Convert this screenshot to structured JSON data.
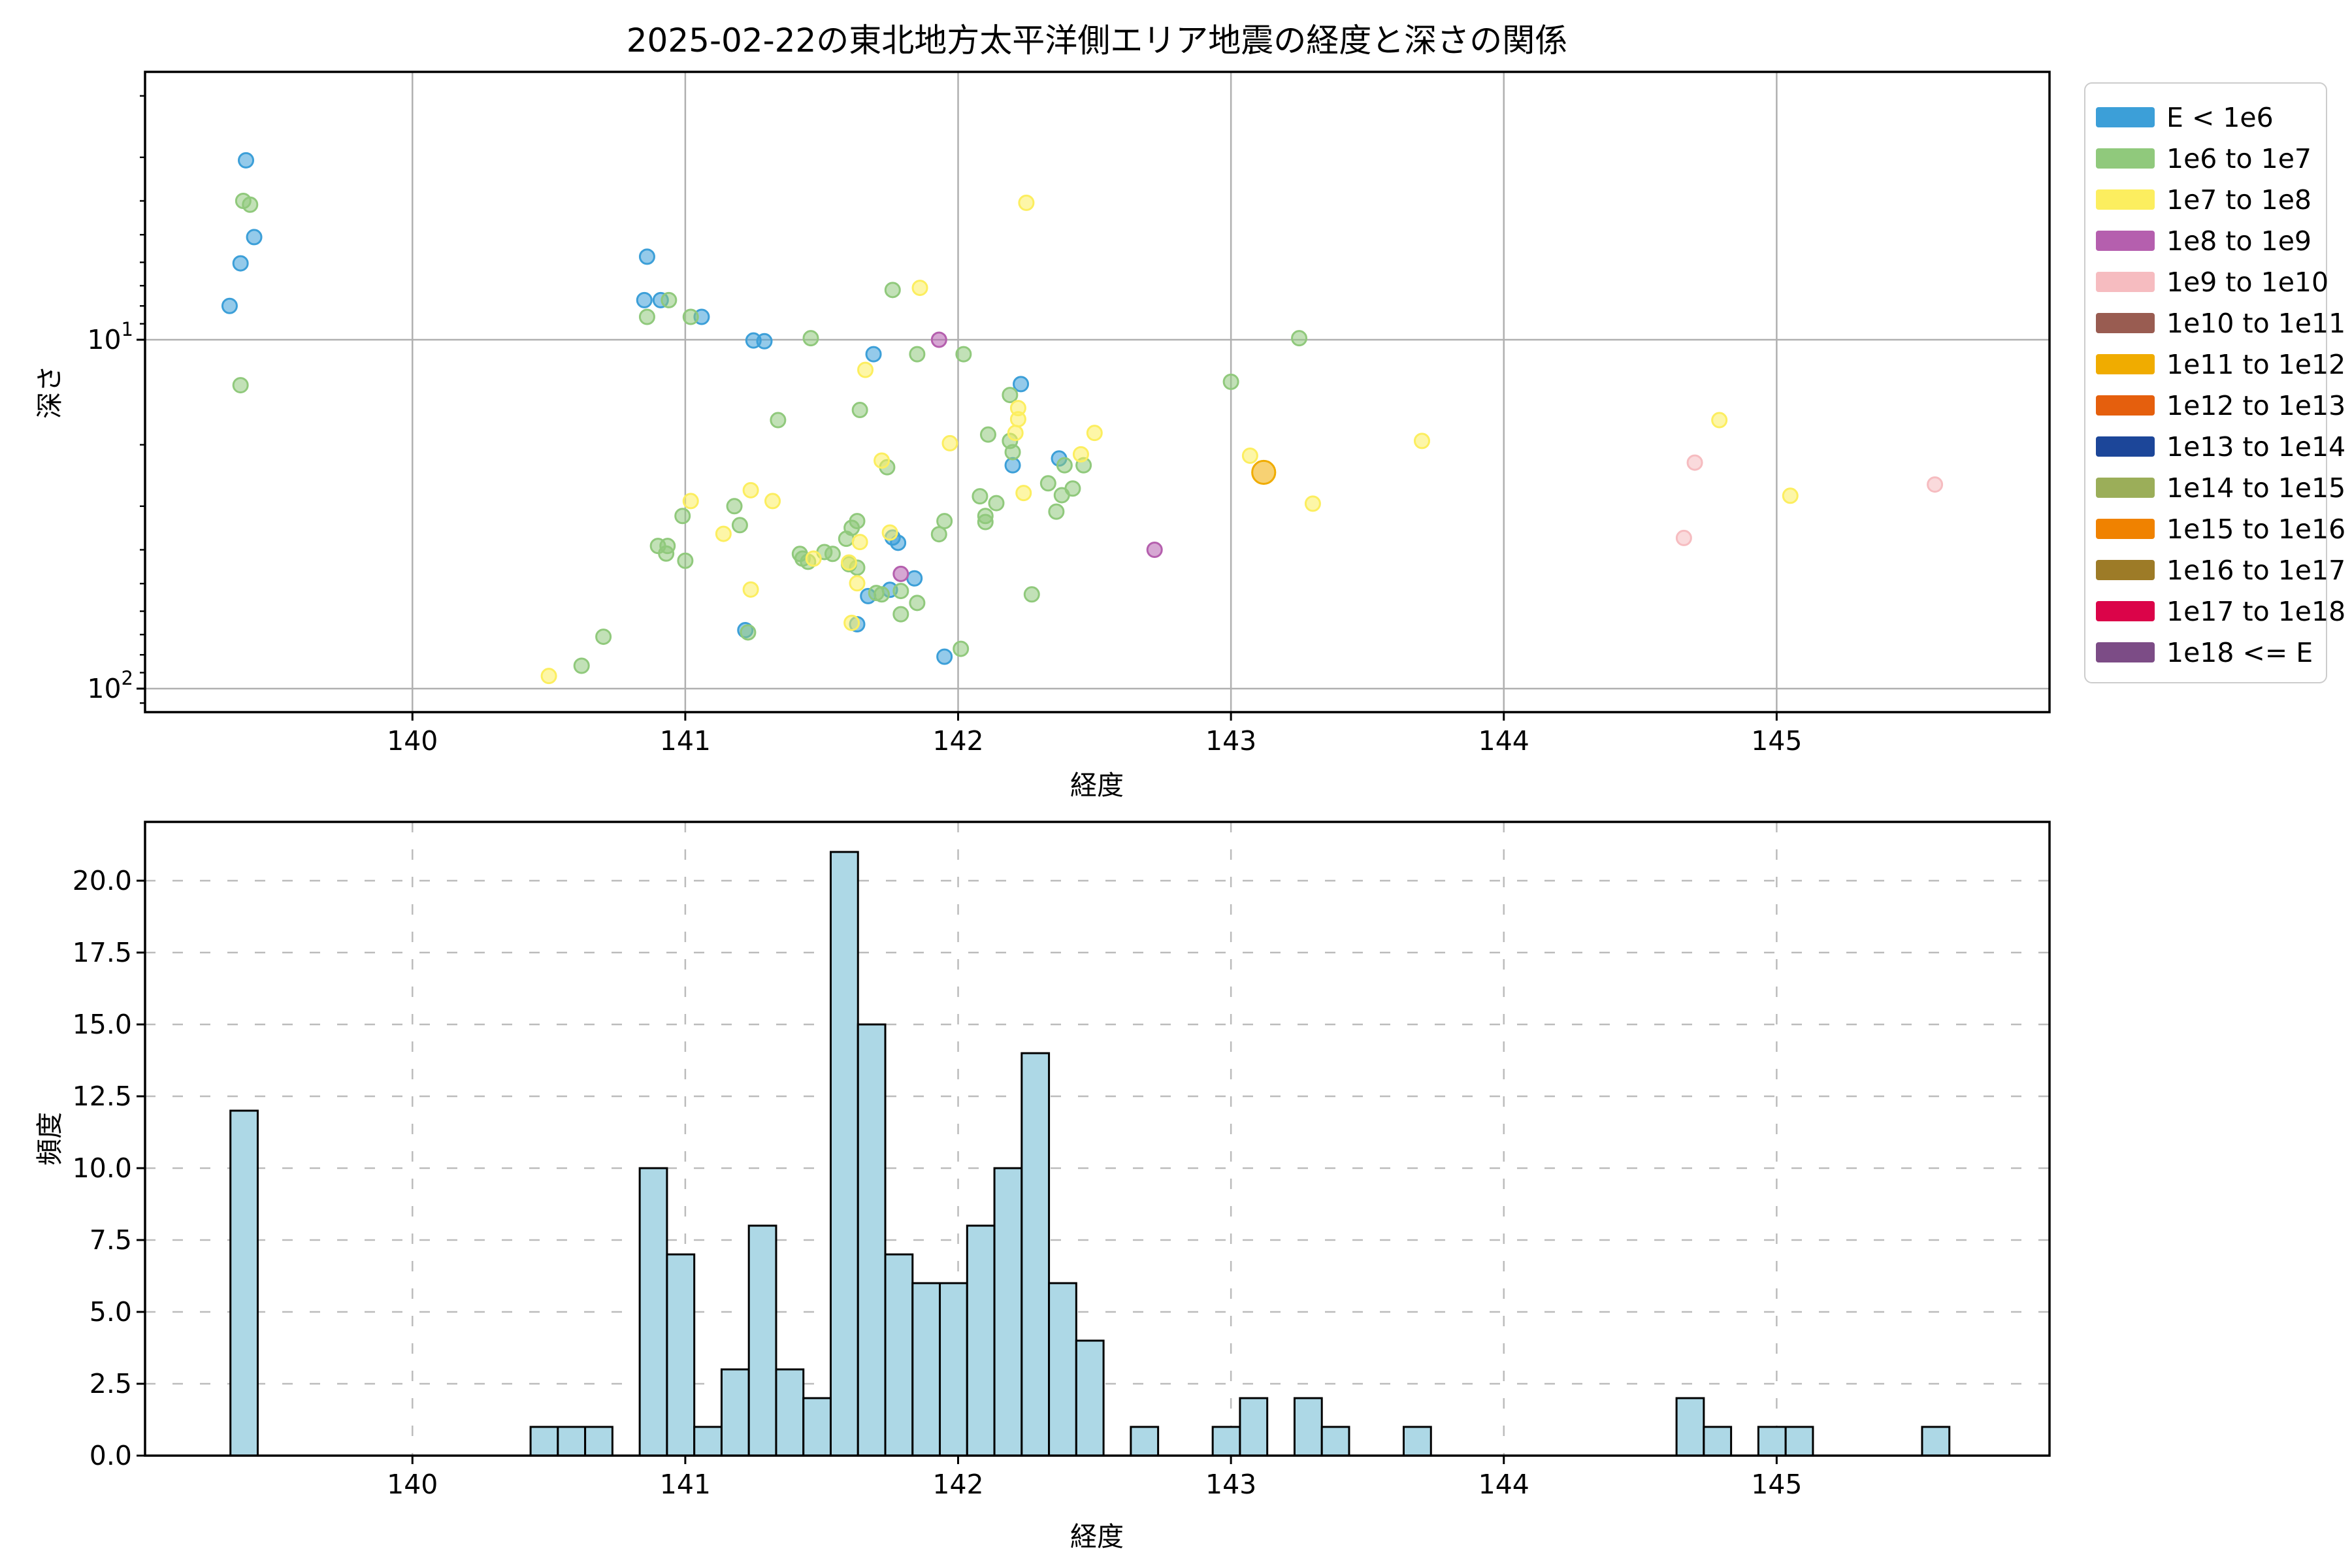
{
  "figure_title": "2025-02-22の東北地方太平洋側エリア地震の経度と深さの関係",
  "legend": [
    {
      "label": "E < 1e6",
      "color": "#3C9FD8"
    },
    {
      "label": "1e6 to 1e7",
      "color": "#90C97C"
    },
    {
      "label": "1e7 to 1e8",
      "color": "#FCEE5F"
    },
    {
      "label": "1e8 to 1e9",
      "color": "#B55FAE"
    },
    {
      "label": "1e9 to 1e10",
      "color": "#F6BCC0"
    },
    {
      "label": "1e10 to 1e11",
      "color": "#995C51"
    },
    {
      "label": "1e11 to 1e12",
      "color": "#F0AC00"
    },
    {
      "label": "1e12 to 1e13",
      "color": "#E55F0D"
    },
    {
      "label": "1e13 to 1e14",
      "color": "#1C4699"
    },
    {
      "label": "1e14 to 1e15",
      "color": "#9BAE59"
    },
    {
      "label": "1e15 to 1e16",
      "color": "#F08200"
    },
    {
      "label": "1e16 to 1e17",
      "color": "#9D7B27"
    },
    {
      "label": "1e17 to 1e18",
      "color": "#DB0449"
    },
    {
      "label": "1e18 <= E",
      "color": "#7C4C86"
    }
  ],
  "chart_data": [
    {
      "type": "scatter",
      "title": "2025-02-22の東北地方太平洋側エリア地震の経度と深さの関係",
      "xlabel": "経度",
      "ylabel": "深さ",
      "x_ticks": [
        140,
        141,
        142,
        143,
        144,
        145
      ],
      "xlim": [
        139.02,
        146.0
      ],
      "y_scale": "log",
      "y_axis_inverted": true,
      "ylim": [
        1.71,
        116.7
      ],
      "y_major_ticks": [
        10,
        100
      ],
      "y_tick_labels": [
        {
          "base": "10",
          "exp": "1"
        },
        {
          "base": "10",
          "exp": "2"
        }
      ],
      "grid": "solid",
      "legend_position": "upper right, outside",
      "points_format": "[longitude, depth_km, legend_category_index, optional_size_scale]",
      "points": [
        [
          139.39,
          3.06,
          0
        ],
        [
          139.42,
          5.08,
          0
        ],
        [
          139.37,
          6.04,
          0
        ],
        [
          139.33,
          8.0,
          0
        ],
        [
          140.86,
          5.78,
          0
        ],
        [
          140.85,
          7.7,
          0
        ],
        [
          140.91,
          7.7,
          0
        ],
        [
          141.06,
          8.6,
          0
        ],
        [
          141.25,
          10.05,
          0
        ],
        [
          141.29,
          10.1,
          0
        ],
        [
          141.69,
          11.0,
          0
        ],
        [
          142.23,
          13.4,
          0
        ],
        [
          142.2,
          22.9,
          0
        ],
        [
          142.37,
          21.9,
          0
        ],
        [
          141.76,
          36.9,
          0
        ],
        [
          141.78,
          38.2,
          0
        ],
        [
          141.84,
          48.3,
          0
        ],
        [
          141.67,
          54.3,
          0
        ],
        [
          141.75,
          52.1,
          0
        ],
        [
          141.63,
          65.4,
          0
        ],
        [
          141.22,
          68,
          0
        ],
        [
          141.95,
          81,
          0
        ],
        [
          139.38,
          4.0,
          1
        ],
        [
          139.405,
          4.1,
          1
        ],
        [
          139.37,
          13.5,
          1
        ],
        [
          140.94,
          7.7,
          1
        ],
        [
          140.86,
          8.6,
          1
        ],
        [
          141.02,
          8.6,
          1
        ],
        [
          141.46,
          9.9,
          1
        ],
        [
          141.76,
          7.2,
          1
        ],
        [
          141.85,
          11.0,
          1
        ],
        [
          142.02,
          11.0,
          1
        ],
        [
          142.19,
          14.4,
          1
        ],
        [
          143.0,
          13.2,
          1
        ],
        [
          143.25,
          9.9,
          1
        ],
        [
          141.34,
          17,
          1
        ],
        [
          141.18,
          30,
          1
        ],
        [
          140.99,
          32,
          1
        ],
        [
          141.2,
          34,
          1
        ],
        [
          140.9,
          39,
          1
        ],
        [
          140.935,
          39,
          1
        ],
        [
          140.93,
          41,
          1
        ],
        [
          141.0,
          43,
          1
        ],
        [
          141.23,
          69,
          1
        ],
        [
          140.7,
          71,
          1
        ],
        [
          140.62,
          86,
          1
        ],
        [
          141.64,
          15.9,
          1
        ],
        [
          142.11,
          18.7,
          1
        ],
        [
          142.19,
          19.5,
          1
        ],
        [
          141.74,
          23.2,
          1
        ],
        [
          142.2,
          21.0,
          1
        ],
        [
          142.39,
          22.9,
          1
        ],
        [
          142.46,
          22.9,
          1
        ],
        [
          142.33,
          25.8,
          1
        ],
        [
          142.42,
          26.7,
          1
        ],
        [
          142.38,
          27.9,
          1
        ],
        [
          142.08,
          28.1,
          1
        ],
        [
          142.36,
          31.1,
          1
        ],
        [
          142.14,
          29.4,
          1
        ],
        [
          142.1,
          32.0,
          1
        ],
        [
          141.95,
          33.1,
          1
        ],
        [
          142.1,
          33.3,
          1
        ],
        [
          141.93,
          36.1,
          1
        ],
        [
          141.63,
          33.1,
          1
        ],
        [
          141.61,
          34.6,
          1
        ],
        [
          141.59,
          37.2,
          1
        ],
        [
          141.51,
          40.6,
          1
        ],
        [
          141.54,
          41.1,
          1
        ],
        [
          141.42,
          41.1,
          1
        ],
        [
          141.43,
          42.4,
          1
        ],
        [
          141.45,
          43.3,
          1
        ],
        [
          141.6,
          44,
          1
        ],
        [
          141.63,
          45,
          1
        ],
        [
          141.7,
          53.2,
          1
        ],
        [
          141.72,
          53.7,
          1
        ],
        [
          141.79,
          52.5,
          1
        ],
        [
          141.85,
          56.8,
          1
        ],
        [
          141.79,
          61.2,
          1
        ],
        [
          142.27,
          53.7,
          1
        ],
        [
          142.01,
          76.9,
          1
        ],
        [
          142.25,
          4.05,
          2
        ],
        [
          141.86,
          7.1,
          2
        ],
        [
          141.66,
          12.2,
          2
        ],
        [
          141.02,
          29,
          2
        ],
        [
          141.24,
          27,
          2
        ],
        [
          141.32,
          29,
          2
        ],
        [
          141.14,
          36,
          2
        ],
        [
          141.24,
          52,
          2
        ],
        [
          140.5,
          92,
          2
        ],
        [
          142.22,
          15.7,
          2
        ],
        [
          142.22,
          16.9,
          2
        ],
        [
          141.97,
          19.8,
          2
        ],
        [
          142.21,
          18.5,
          2
        ],
        [
          142.5,
          18.5,
          2
        ],
        [
          141.72,
          22.2,
          2
        ],
        [
          142.45,
          21.3,
          2
        ],
        [
          142.24,
          27.5,
          2
        ],
        [
          141.75,
          35.7,
          2
        ],
        [
          141.64,
          38.0,
          2
        ],
        [
          141.47,
          42.4,
          2
        ],
        [
          141.6,
          43.5,
          2
        ],
        [
          141.63,
          49.9,
          2
        ],
        [
          141.61,
          64.8,
          2
        ],
        [
          143.07,
          21.5,
          2
        ],
        [
          143.3,
          29.5,
          2
        ],
        [
          143.7,
          19.5,
          2
        ],
        [
          144.79,
          17,
          2
        ],
        [
          145.05,
          28,
          2
        ],
        [
          141.93,
          10.0,
          3
        ],
        [
          141.79,
          46.9,
          3
        ],
        [
          142.72,
          40,
          3
        ],
        [
          144.66,
          37,
          4
        ],
        [
          144.7,
          22.5,
          4
        ],
        [
          145.58,
          26,
          4
        ],
        [
          143.12,
          24,
          6,
          1.6
        ]
      ]
    },
    {
      "type": "bar",
      "subtype": "histogram",
      "xlabel": "経度",
      "ylabel": "頻度",
      "x_ticks": [
        140,
        141,
        142,
        143,
        144,
        145
      ],
      "xlim": [
        139.02,
        146.0
      ],
      "ylim": [
        0,
        22.05
      ],
      "y_ticks": [
        "0.0",
        "2.5",
        "5.0",
        "7.5",
        "10.0",
        "12.5",
        "15.0",
        "17.5",
        "20.0"
      ],
      "grid": "dashed",
      "bar_fill": "#ADD8E6",
      "bar_edge": "#000000",
      "bin_width": 0.1,
      "bars_format": "[bin_left_edge, count]",
      "bars": [
        [
          139.333,
          12
        ],
        [
          140.433,
          1
        ],
        [
          140.533,
          1
        ],
        [
          140.633,
          1
        ],
        [
          140.833,
          10
        ],
        [
          140.933,
          7
        ],
        [
          141.033,
          1
        ],
        [
          141.133,
          3
        ],
        [
          141.233,
          8
        ],
        [
          141.333,
          3
        ],
        [
          141.433,
          2
        ],
        [
          141.533,
          21
        ],
        [
          141.633,
          15
        ],
        [
          141.733,
          7
        ],
        [
          141.833,
          6
        ],
        [
          141.933,
          6
        ],
        [
          142.033,
          8
        ],
        [
          142.133,
          10
        ],
        [
          142.233,
          14
        ],
        [
          142.333,
          6
        ],
        [
          142.433,
          4
        ],
        [
          142.633,
          1
        ],
        [
          142.933,
          1
        ],
        [
          143.033,
          2
        ],
        [
          143.233,
          2
        ],
        [
          143.333,
          1
        ],
        [
          143.633,
          1
        ],
        [
          144.633,
          2
        ],
        [
          144.733,
          1
        ],
        [
          144.933,
          1
        ],
        [
          145.033,
          1
        ],
        [
          145.533,
          1
        ]
      ]
    }
  ]
}
